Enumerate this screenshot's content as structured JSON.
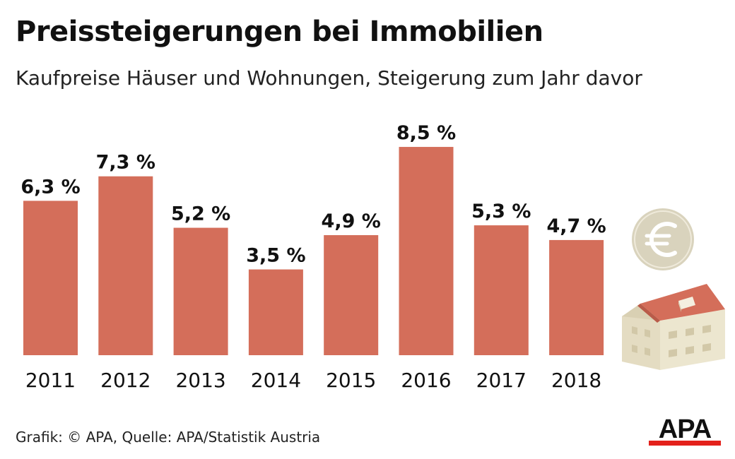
{
  "header": {
    "title": "Preissteigerungen bei Immobilien",
    "subtitle": "Kaufpreise Häuser und Wohnungen, Steigerung zum Jahr davor"
  },
  "footer": {
    "credit": "Grafik: © APA, Quelle: APA/Statistik Austria"
  },
  "brand": {
    "logo_text": "APA"
  },
  "colors": {
    "bar": "#d46e5a",
    "logo_red": "#e3211b",
    "coin": "#d9d3bd",
    "house_wall": "#ece6cf",
    "house_roof": "#d46e5a"
  },
  "icons": [
    "euro-coin-icon",
    "house-icon"
  ],
  "chart_data": {
    "type": "bar",
    "title": "Preissteigerungen bei Immobilien",
    "subtitle": "Kaufpreise Häuser und Wohnungen, Steigerung zum Jahr davor",
    "categories": [
      "2011",
      "2012",
      "2013",
      "2014",
      "2015",
      "2016",
      "2017",
      "2018"
    ],
    "values": [
      6.3,
      7.3,
      5.2,
      3.5,
      4.9,
      8.5,
      5.3,
      4.7
    ],
    "value_labels": [
      "6,3 %",
      "7,3 %",
      "5,2 %",
      "3,5 %",
      "4,9 %",
      "8,5 %",
      "5,3 %",
      "4,7 %"
    ],
    "xlabel": "",
    "ylabel": "",
    "ylim": [
      0,
      8.5
    ],
    "grid": false,
    "legend": "none"
  }
}
